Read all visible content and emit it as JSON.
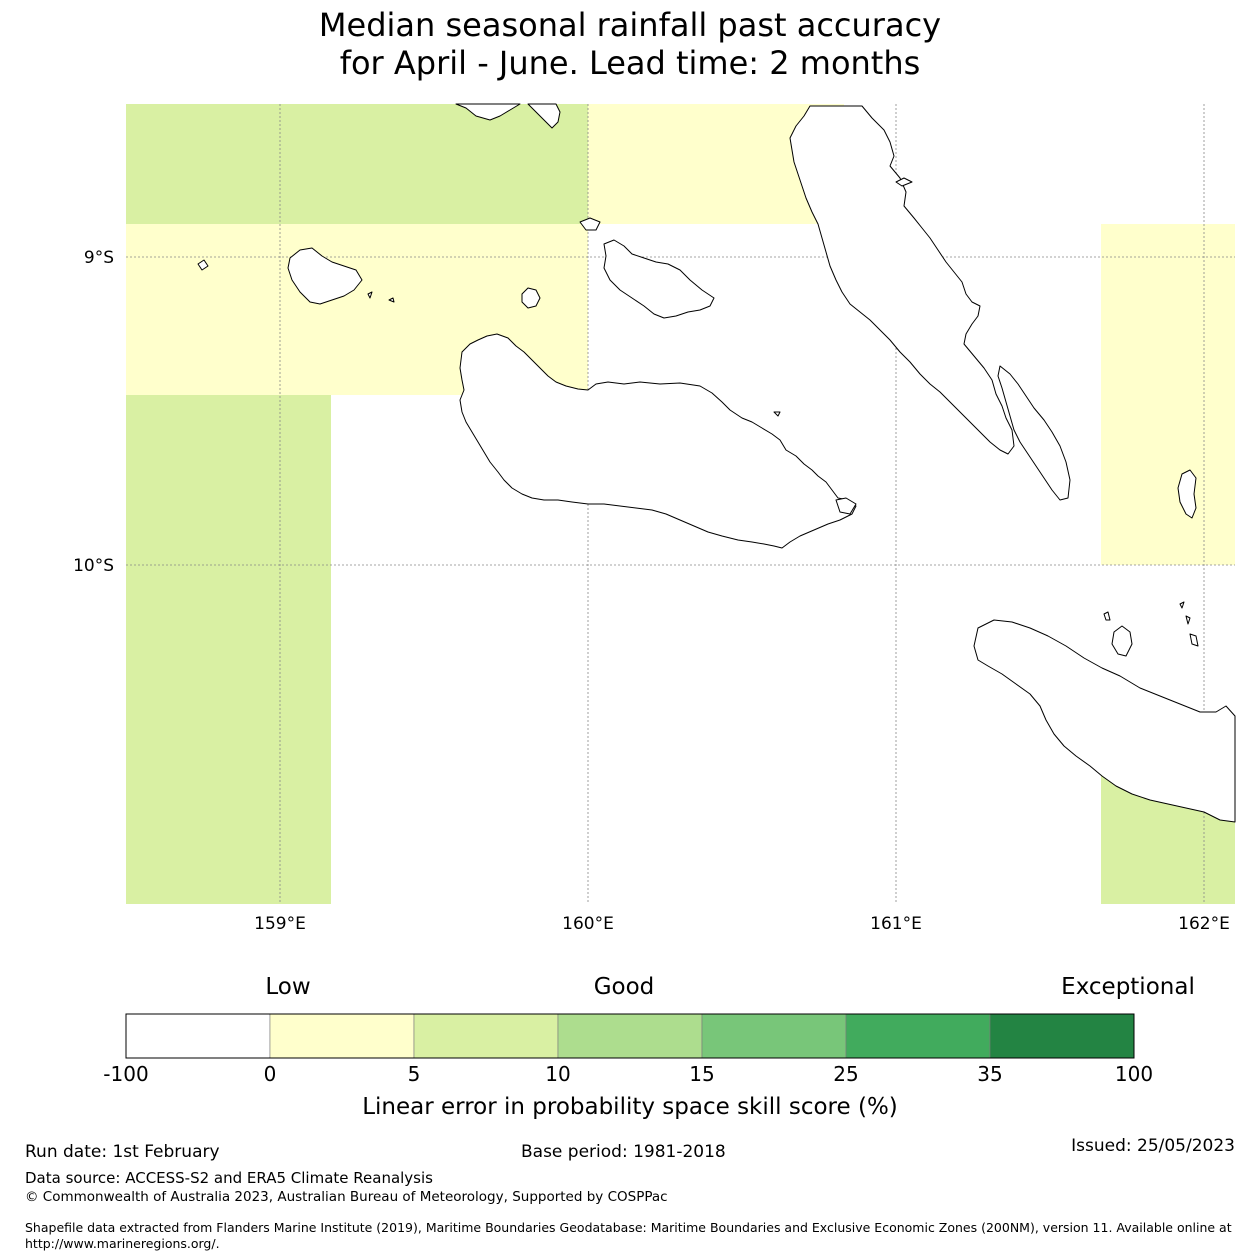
{
  "title": {
    "line1": "Median seasonal rainfall past accuracy",
    "line2": "for April - June. Lead time: 2 months"
  },
  "map": {
    "lat_labels": [
      "9°S",
      "10°S"
    ],
    "lon_labels": [
      "159°E",
      "160°E",
      "161°E",
      "162°E"
    ],
    "colors": {
      "ocean": "#ffffff",
      "coast": "#000000",
      "grid": "#888888"
    },
    "cells": [
      {
        "category": "5-10",
        "region": "north-west block"
      },
      {
        "category": "0-5",
        "region": "north-central block"
      },
      {
        "category": "0-5",
        "region": "west band"
      },
      {
        "category": "5-10",
        "region": "south-west strip"
      },
      {
        "category": "0-5",
        "region": "east strip"
      },
      {
        "category": "5-10",
        "region": "south-east block"
      }
    ]
  },
  "legend": {
    "qualitative": [
      "Low",
      "Good",
      "Exceptional"
    ],
    "ticks": [
      "-100",
      "0",
      "5",
      "10",
      "15",
      "25",
      "35",
      "100"
    ],
    "colors": [
      "#ffffff",
      "#ffffcc",
      "#d9f0a3",
      "#addd8e",
      "#78c679",
      "#41ab5d",
      "#238443"
    ],
    "label": "Linear error in probability space skill score (%)"
  },
  "footer": {
    "run_date": "Run date: 1st February",
    "base_period": "Base period: 1981-2018",
    "issued": "Issued: 25/05/2023",
    "data_source": "Data source: ACCESS-S2 and ERA5 Climate Reanalysis",
    "copyright": "© Commonwealth of Australia 2023, Australian Bureau of Meteorology, Supported by COSPPac",
    "shapefile_line1": "Shapefile data extracted from Flanders Marine Institute (2019), Maritime Boundaries Geodatabase: Maritime Boundaries and Exclusive Economic Zones (200NM), version 11. Available online at",
    "shapefile_line2": "http://www.marineregions.org/."
  }
}
